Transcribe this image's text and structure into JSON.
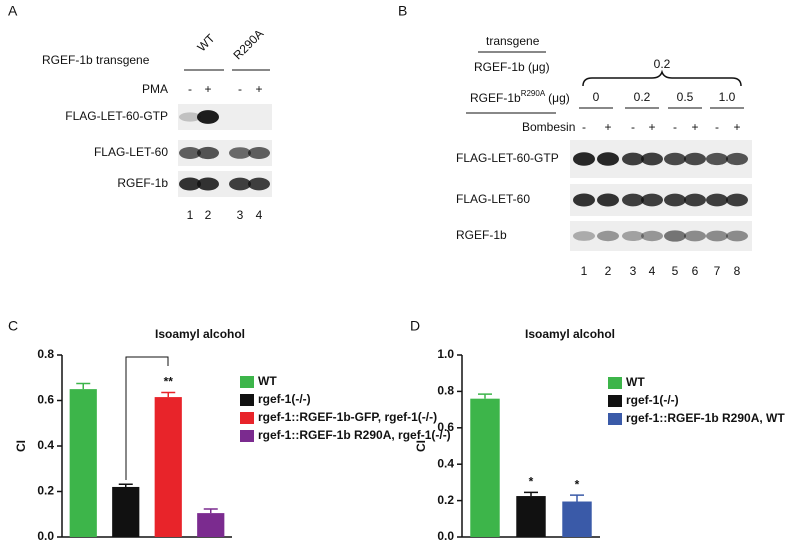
{
  "panel_a": {
    "label": "A",
    "transgene_label": "RGEF-1b transgene",
    "groups": [
      "WT",
      "R290A"
    ],
    "treatment": "PMA",
    "signs": [
      "-",
      "+",
      "-",
      "+"
    ],
    "rows": [
      "FLAG-LET-60-GTP",
      "FLAG-LET-60",
      "RGEF-1b"
    ],
    "lanes": [
      "1",
      "2",
      "3",
      "4"
    ]
  },
  "panel_b": {
    "label": "B",
    "header": "transgene",
    "rgef_label": "RGEF-1b (μg)",
    "rgef_amount": "0.2",
    "mutant_label": "RGEF-1b",
    "mutant_superscript": "R290A",
    "mutant_unit": "(μg)",
    "doses": [
      "0",
      "0.2",
      "0.5",
      "1.0"
    ],
    "treatment": "Bombesin",
    "signs": [
      "-",
      "+",
      "-",
      "+",
      "-",
      "+",
      "-",
      "+"
    ],
    "rows": [
      "FLAG-LET-60-GTP",
      "FLAG-LET-60",
      "RGEF-1b"
    ],
    "lanes": [
      "1",
      "2",
      "3",
      "4",
      "5",
      "6",
      "7",
      "8"
    ]
  },
  "chart_data": [
    {
      "type": "bar",
      "panel": "C",
      "title": "Isoamyl alcohol",
      "ylabel": "CI",
      "ylim": [
        0,
        0.8
      ],
      "yticks": [
        {
          "value": 0,
          "label": "0.0"
        },
        0.2,
        0.4,
        0.6,
        0.8
      ],
      "series": [
        {
          "name": "WT",
          "color": "#3db54a",
          "values": [
            0.65
          ],
          "errors": [
            0.025
          ]
        },
        {
          "name": "rgef-1(-/-)",
          "color": "#111111",
          "values": [
            0.22
          ],
          "errors": [
            0.012
          ]
        },
        {
          "name": "rgef-1::RGEF-1b-GFP, rgef-1(-/-)",
          "color": "#e8242a",
          "values": [
            0.615
          ],
          "errors": [
            0.02
          ]
        },
        {
          "name": "rgef-1::RGEF-1b R290A, rgef-1(-/-)",
          "color": "#7b2b8f",
          "values": [
            0.105
          ],
          "errors": [
            0.018
          ]
        }
      ],
      "significance": [
        null,
        null,
        "**",
        null
      ]
    },
    {
      "type": "bar",
      "panel": "D",
      "title": "Isoamyl alcohol",
      "ylabel": "CI",
      "ylim": [
        0,
        1.0
      ],
      "yticks": [
        {
          "value": 0,
          "label": "0.0"
        },
        0.2,
        0.4,
        0.6,
        0.8,
        {
          "value": 1.0,
          "label": "1.0"
        }
      ],
      "series": [
        {
          "name": "WT",
          "color": "#3db54a",
          "values": [
            0.76
          ],
          "errors": [
            0.025
          ]
        },
        {
          "name": "rgef-1(-/-)",
          "color": "#111111",
          "values": [
            0.225
          ],
          "errors": [
            0.02
          ]
        },
        {
          "name": "rgef-1::RGEF-1b R290A, WT",
          "color": "#3a5aa8",
          "values": [
            0.195
          ],
          "errors": [
            0.035
          ]
        }
      ],
      "significance": [
        null,
        "*",
        "*"
      ]
    }
  ]
}
